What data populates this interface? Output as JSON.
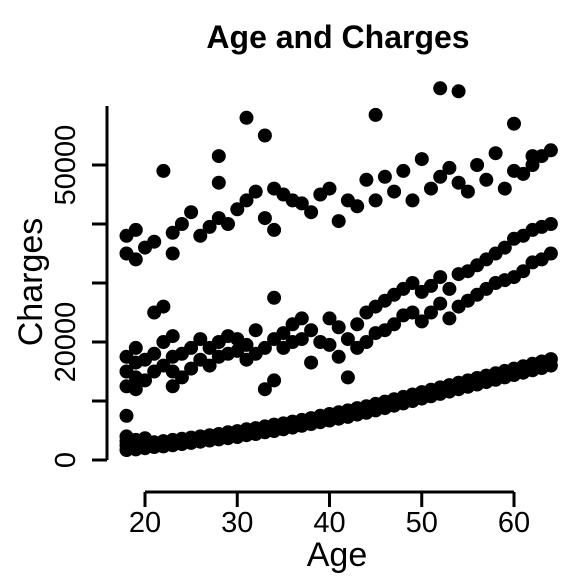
{
  "chart_data": {
    "type": "scatter",
    "title": "Age and Charges",
    "xlabel": "Age",
    "ylabel": "Charges",
    "xlim": [
      18,
      64
    ],
    "ylim": [
      0,
      60000
    ],
    "x_ticks": [
      20,
      30,
      40,
      50,
      60
    ],
    "y_ticks": [
      0,
      10000,
      20000,
      30000,
      40000,
      50000
    ],
    "y_tick_labels": [
      "0",
      "",
      "20000",
      "",
      "",
      "50000"
    ],
    "grid": false,
    "point_color": "#000000",
    "points": [
      [
        18,
        1700
      ],
      [
        18,
        2500
      ],
      [
        18,
        3200
      ],
      [
        18,
        4000
      ],
      [
        19,
        1800
      ],
      [
        19,
        2600
      ],
      [
        19,
        3400
      ],
      [
        20,
        2000
      ],
      [
        20,
        2900
      ],
      [
        20,
        3700
      ],
      [
        21,
        2200
      ],
      [
        21,
        3000
      ],
      [
        22,
        2300
      ],
      [
        22,
        3200
      ],
      [
        23,
        2500
      ],
      [
        23,
        3400
      ],
      [
        24,
        2700
      ],
      [
        24,
        3600
      ],
      [
        25,
        2900
      ],
      [
        25,
        3800
      ],
      [
        26,
        3100
      ],
      [
        26,
        4000
      ],
      [
        27,
        3300
      ],
      [
        27,
        4200
      ],
      [
        28,
        3500
      ],
      [
        28,
        4400
      ],
      [
        29,
        3700
      ],
      [
        29,
        4700
      ],
      [
        30,
        3900
      ],
      [
        30,
        4900
      ],
      [
        31,
        4200
      ],
      [
        31,
        5200
      ],
      [
        32,
        4400
      ],
      [
        32,
        5400
      ],
      [
        33,
        4700
      ],
      [
        33,
        5700
      ],
      [
        34,
        4900
      ],
      [
        34,
        6000
      ],
      [
        35,
        5200
      ],
      [
        35,
        6200
      ],
      [
        36,
        5500
      ],
      [
        36,
        6500
      ],
      [
        37,
        5800
      ],
      [
        37,
        6800
      ],
      [
        38,
        6100
      ],
      [
        38,
        7100
      ],
      [
        39,
        6400
      ],
      [
        39,
        7500
      ],
      [
        40,
        6700
      ],
      [
        40,
        7800
      ],
      [
        41,
        7000
      ],
      [
        41,
        8100
      ],
      [
        42,
        7300
      ],
      [
        42,
        8400
      ],
      [
        43,
        7700
      ],
      [
        43,
        8800
      ],
      [
        44,
        8000
      ],
      [
        44,
        9100
      ],
      [
        45,
        8400
      ],
      [
        45,
        9500
      ],
      [
        46,
        8800
      ],
      [
        46,
        9900
      ],
      [
        47,
        9200
      ],
      [
        47,
        10300
      ],
      [
        48,
        9600
      ],
      [
        48,
        10700
      ],
      [
        49,
        10000
      ],
      [
        49,
        11100
      ],
      [
        50,
        10400
      ],
      [
        50,
        11500
      ],
      [
        51,
        10800
      ],
      [
        51,
        11900
      ],
      [
        52,
        11200
      ],
      [
        52,
        12300
      ],
      [
        53,
        11600
      ],
      [
        53,
        12700
      ],
      [
        54,
        12000
      ],
      [
        54,
        13100
      ],
      [
        55,
        12400
      ],
      [
        55,
        13500
      ],
      [
        56,
        12800
      ],
      [
        56,
        13900
      ],
      [
        57,
        13200
      ],
      [
        57,
        14300
      ],
      [
        58,
        13600
      ],
      [
        58,
        14700
      ],
      [
        59,
        14000
      ],
      [
        59,
        15100
      ],
      [
        60,
        14400
      ],
      [
        60,
        15500
      ],
      [
        61,
        14800
      ],
      [
        61,
        15900
      ],
      [
        62,
        15200
      ],
      [
        62,
        16300
      ],
      [
        63,
        15600
      ],
      [
        63,
        16700
      ],
      [
        64,
        16000
      ],
      [
        64,
        17100
      ],
      [
        18,
        7500
      ],
      [
        19,
        14000
      ],
      [
        18,
        12500
      ],
      [
        18,
        15000
      ],
      [
        18,
        17500
      ],
      [
        19,
        12000
      ],
      [
        19,
        16500
      ],
      [
        19,
        19000
      ],
      [
        20,
        13500
      ],
      [
        20,
        17000
      ],
      [
        21,
        15000
      ],
      [
        21,
        18000
      ],
      [
        21,
        25000
      ],
      [
        22,
        16000
      ],
      [
        22,
        20000
      ],
      [
        22,
        26000
      ],
      [
        23,
        12500
      ],
      [
        23,
        15000
      ],
      [
        23,
        17500
      ],
      [
        23,
        21000
      ],
      [
        24,
        14000
      ],
      [
        24,
        18000
      ],
      [
        25,
        15500
      ],
      [
        25,
        19000
      ],
      [
        26,
        17000
      ],
      [
        26,
        20500
      ],
      [
        27,
        16000
      ],
      [
        27,
        19000
      ],
      [
        28,
        17500
      ],
      [
        28,
        20000
      ],
      [
        29,
        18000
      ],
      [
        29,
        21000
      ],
      [
        30,
        18500
      ],
      [
        30,
        20500
      ],
      [
        31,
        17000
      ],
      [
        31,
        19500
      ],
      [
        32,
        18000
      ],
      [
        32,
        22000
      ],
      [
        33,
        12000
      ],
      [
        33,
        19000
      ],
      [
        34,
        13500
      ],
      [
        34,
        20500
      ],
      [
        34,
        27500
      ],
      [
        35,
        19000
      ],
      [
        35,
        21500
      ],
      [
        36,
        20000
      ],
      [
        36,
        23000
      ],
      [
        37,
        20500
      ],
      [
        37,
        24000
      ],
      [
        38,
        16500
      ],
      [
        38,
        22000
      ],
      [
        39,
        20000
      ],
      [
        40,
        19500
      ],
      [
        40,
        24000
      ],
      [
        41,
        17500
      ],
      [
        41,
        22500
      ],
      [
        42,
        14000
      ],
      [
        42,
        20500
      ],
      [
        43,
        19000
      ],
      [
        43,
        23000
      ],
      [
        44,
        20000
      ],
      [
        44,
        25000
      ],
      [
        45,
        21500
      ],
      [
        45,
        26000
      ],
      [
        46,
        22000
      ],
      [
        46,
        27000
      ],
      [
        47,
        23000
      ],
      [
        47,
        28000
      ],
      [
        48,
        24500
      ],
      [
        48,
        29000
      ],
      [
        49,
        25000
      ],
      [
        49,
        30000
      ],
      [
        50,
        23500
      ],
      [
        50,
        28500
      ],
      [
        51,
        25000
      ],
      [
        51,
        29500
      ],
      [
        52,
        26500
      ],
      [
        52,
        31000
      ],
      [
        53,
        24000
      ],
      [
        53,
        29000
      ],
      [
        54,
        26000
      ],
      [
        54,
        31500
      ],
      [
        55,
        27000
      ],
      [
        55,
        32000
      ],
      [
        56,
        28000
      ],
      [
        56,
        33000
      ],
      [
        57,
        29000
      ],
      [
        57,
        34000
      ],
      [
        58,
        30000
      ],
      [
        58,
        35000
      ],
      [
        59,
        30500
      ],
      [
        59,
        36000
      ],
      [
        60,
        31000
      ],
      [
        60,
        37500
      ],
      [
        61,
        32000
      ],
      [
        61,
        38000
      ],
      [
        62,
        33500
      ],
      [
        62,
        39000
      ],
      [
        63,
        34000
      ],
      [
        63,
        39500
      ],
      [
        64,
        35000
      ],
      [
        64,
        40000
      ],
      [
        18,
        35000
      ],
      [
        18,
        38000
      ],
      [
        19,
        34000
      ],
      [
        19,
        39000
      ],
      [
        20,
        36000
      ],
      [
        21,
        37000
      ],
      [
        22,
        49000
      ],
      [
        23,
        35000
      ],
      [
        23,
        38500
      ],
      [
        24,
        40000
      ],
      [
        25,
        42000
      ],
      [
        26,
        38000
      ],
      [
        27,
        39500
      ],
      [
        28,
        41000
      ],
      [
        28,
        47000
      ],
      [
        29,
        40000
      ],
      [
        30,
        42500
      ],
      [
        31,
        44000
      ],
      [
        32,
        45500
      ],
      [
        33,
        41000
      ],
      [
        34,
        39000
      ],
      [
        34,
        46000
      ],
      [
        35,
        45000
      ],
      [
        36,
        44000
      ],
      [
        37,
        43500
      ],
      [
        38,
        42000
      ],
      [
        39,
        45000
      ],
      [
        40,
        46000
      ],
      [
        41,
        40500
      ],
      [
        42,
        44000
      ],
      [
        43,
        43000
      ],
      [
        44,
        47500
      ],
      [
        45,
        44000
      ],
      [
        46,
        48000
      ],
      [
        47,
        45500
      ],
      [
        48,
        49000
      ],
      [
        49,
        44000
      ],
      [
        50,
        51000
      ],
      [
        51,
        46000
      ],
      [
        52,
        48000
      ],
      [
        53,
        49500
      ],
      [
        54,
        47000
      ],
      [
        55,
        45500
      ],
      [
        56,
        50000
      ],
      [
        57,
        47500
      ],
      [
        58,
        52000
      ],
      [
        59,
        46000
      ],
      [
        60,
        49000
      ],
      [
        61,
        48500
      ],
      [
        62,
        50000
      ],
      [
        63,
        51500
      ],
      [
        64,
        52500
      ],
      [
        45,
        58500
      ],
      [
        54,
        62500
      ],
      [
        52,
        63000
      ],
      [
        31,
        58000
      ],
      [
        33,
        55000
      ],
      [
        28,
        51500
      ],
      [
        60,
        57000
      ],
      [
        62,
        51500
      ]
    ]
  }
}
